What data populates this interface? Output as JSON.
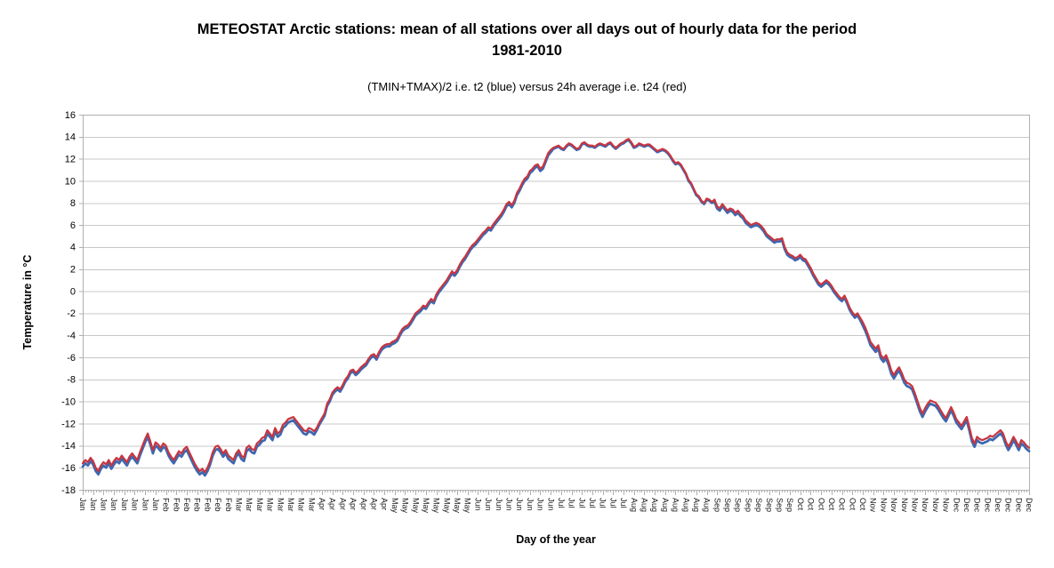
{
  "header": {
    "title_line1": "METEOSTAT Arctic stations: mean of all stations over all days out of hourly data for the period",
    "title_line2": "1981-2010",
    "subtitle": "(TMIN+TMAX)/2 i.e. t2 (blue) versus 24h average i.e. t24 (red)"
  },
  "chart_data": {
    "type": "line",
    "title": "METEOSTAT Arctic stations: mean of all stations over all days out of hourly data for the period 1981-2010",
    "subtitle": "(TMIN+TMAX)/2 i.e. t2 (blue) versus 24h average i.e. t24 (red)",
    "xlabel": "Day of the year",
    "ylabel": "Temperature in °C",
    "ylim": [
      -18,
      16
    ],
    "y_ticks": [
      16,
      14,
      12,
      10,
      8,
      6,
      4,
      2,
      0,
      -2,
      -4,
      -6,
      -8,
      -10,
      -12,
      -14,
      -16,
      -18
    ],
    "grid": "horizontal",
    "legend_position": "none",
    "days_per_year": 365,
    "x_label_step_days": 4,
    "x_tick_labels": [
      "Jan",
      "Jan",
      "Jan",
      "Jan",
      "Jan",
      "Jan",
      "Jan",
      "Jan",
      "Feb",
      "Feb",
      "Feb",
      "Feb",
      "Feb",
      "Feb",
      "Feb",
      "Mar",
      "Mar",
      "Mar",
      "Mar",
      "Mar",
      "Mar",
      "Mar",
      "Mar",
      "Apr",
      "Apr",
      "Apr",
      "Apr",
      "Apr",
      "Apr",
      "Apr",
      "May",
      "May",
      "May",
      "May",
      "May",
      "May",
      "May",
      "May",
      "Jun",
      "Jun",
      "Jun",
      "Jun",
      "Jun",
      "Jun",
      "Jun",
      "Jun",
      "Jul",
      "Jul",
      "Jul",
      "Jul",
      "Jul",
      "Jul",
      "Jul",
      "Aug",
      "Aug",
      "Aug",
      "Aug",
      "Aug",
      "Aug",
      "Aug",
      "Aug",
      "Sep",
      "Sep",
      "Sep",
      "Sep",
      "Sep",
      "Sep",
      "Sep",
      "Sep",
      "Oct",
      "Oct",
      "Oct",
      "Oct",
      "Oct",
      "Oct",
      "Oct",
      "Nov",
      "Nov",
      "Nov",
      "Nov",
      "Nov",
      "Nov",
      "Nov",
      "Nov",
      "Dec",
      "Dec",
      "Dec",
      "Dec",
      "Dec",
      "Dec",
      "Dec",
      "Dec"
    ],
    "colors": {
      "grid": "#c8c8c8",
      "axis": "#b0b0b0",
      "t2_blue": "#3E68B0",
      "t24_red": "#C8353F"
    },
    "series": [
      {
        "name": "t2 = (TMIN+TMAX)/2 (blue)",
        "color": "#3E68B0",
        "width": 2.8,
        "values": [
          -15.9,
          -15.6,
          -15.8,
          -15.4,
          -15.7,
          -16.3,
          -16.6,
          -16.1,
          -15.8,
          -16.0,
          -15.6,
          -16.1,
          -15.7,
          -15.4,
          -15.6,
          -15.2,
          -15.5,
          -15.8,
          -15.3,
          -15.0,
          -15.3,
          -15.6,
          -14.9,
          -14.3,
          -13.7,
          -13.2,
          -13.9,
          -14.7,
          -14.0,
          -14.2,
          -14.5,
          -14.1,
          -14.3,
          -14.9,
          -15.3,
          -15.6,
          -15.2,
          -14.8,
          -15.0,
          -14.6,
          -14.4,
          -14.9,
          -15.4,
          -15.9,
          -16.3,
          -16.6,
          -16.4,
          -16.7,
          -16.3,
          -15.7,
          -14.9,
          -14.4,
          -14.3,
          -14.6,
          -15.0,
          -14.7,
          -15.2,
          -15.4,
          -15.6,
          -15.0,
          -14.7,
          -15.2,
          -15.4,
          -14.5,
          -14.3,
          -14.6,
          -14.7,
          -14.1,
          -13.9,
          -13.6,
          -13.5,
          -12.9,
          -13.2,
          -13.5,
          -12.7,
          -13.2,
          -13.0,
          -12.4,
          -12.2,
          -11.9,
          -11.8,
          -11.7,
          -12.0,
          -12.3,
          -12.6,
          -12.9,
          -13.0,
          -12.7,
          -12.8,
          -13.0,
          -12.6,
          -12.1,
          -11.7,
          -11.3,
          -10.4,
          -10.0,
          -9.4,
          -9.1,
          -8.9,
          -9.1,
          -8.7,
          -8.2,
          -7.9,
          -7.4,
          -7.3,
          -7.6,
          -7.4,
          -7.1,
          -6.9,
          -6.7,
          -6.3,
          -6.0,
          -5.9,
          -6.2,
          -5.7,
          -5.3,
          -5.1,
          -5.0,
          -5.0,
          -4.8,
          -4.7,
          -4.5,
          -4.0,
          -3.6,
          -3.4,
          -3.3,
          -3.0,
          -2.6,
          -2.2,
          -2.0,
          -1.8,
          -1.5,
          -1.6,
          -1.2,
          -0.9,
          -1.1,
          -0.5,
          -0.1,
          0.2,
          0.5,
          0.8,
          1.2,
          1.6,
          1.4,
          1.7,
          2.2,
          2.6,
          2.9,
          3.3,
          3.7,
          4.0,
          4.2,
          4.5,
          4.8,
          5.1,
          5.3,
          5.6,
          5.5,
          5.9,
          6.2,
          6.5,
          6.8,
          7.2,
          7.7,
          7.9,
          7.6,
          8.0,
          8.7,
          9.1,
          9.6,
          10.0,
          10.2,
          10.7,
          10.9,
          11.2,
          11.3,
          10.9,
          11.1,
          11.7,
          12.3,
          12.6,
          12.9,
          13.0,
          13.1,
          12.9,
          12.8,
          13.1,
          13.3,
          13.2,
          13.0,
          12.8,
          12.9,
          13.3,
          13.4,
          13.2,
          13.1,
          13.1,
          13.0,
          13.2,
          13.3,
          13.2,
          13.1,
          13.3,
          13.4,
          13.1,
          12.9,
          13.1,
          13.3,
          13.4,
          13.6,
          13.7,
          13.4,
          13.0,
          13.1,
          13.3,
          13.2,
          13.1,
          13.2,
          13.2,
          13.0,
          12.8,
          12.6,
          12.7,
          12.8,
          12.7,
          12.5,
          12.2,
          11.8,
          11.5,
          11.6,
          11.4,
          11.0,
          10.6,
          10.0,
          9.7,
          9.2,
          8.7,
          8.5,
          8.1,
          7.9,
          8.3,
          8.2,
          8.0,
          8.1,
          7.5,
          7.3,
          7.7,
          7.4,
          7.1,
          7.3,
          7.2,
          6.9,
          7.1,
          6.8,
          6.6,
          6.2,
          6.0,
          5.8,
          5.9,
          6.0,
          5.9,
          5.7,
          5.4,
          5.0,
          4.8,
          4.6,
          4.4,
          4.5,
          4.5,
          4.6,
          3.8,
          3.3,
          3.1,
          3.0,
          2.8,
          2.9,
          3.1,
          2.8,
          2.7,
          2.3,
          1.9,
          1.4,
          1.0,
          0.6,
          0.4,
          0.6,
          0.8,
          0.6,
          0.3,
          -0.1,
          -0.4,
          -0.7,
          -0.9,
          -0.6,
          -1.1,
          -1.7,
          -2.1,
          -2.4,
          -2.2,
          -2.6,
          -3.1,
          -3.6,
          -4.2,
          -4.9,
          -5.2,
          -5.5,
          -5.2,
          -6.1,
          -6.4,
          -6.1,
          -6.7,
          -7.5,
          -7.9,
          -7.5,
          -7.2,
          -7.7,
          -8.3,
          -8.6,
          -8.7,
          -8.9,
          -9.5,
          -10.2,
          -10.9,
          -11.4,
          -10.9,
          -10.5,
          -10.2,
          -10.3,
          -10.4,
          -10.7,
          -11.1,
          -11.5,
          -11.8,
          -11.3,
          -10.8,
          -11.3,
          -11.9,
          -12.2,
          -12.5,
          -12.1,
          -11.7,
          -12.6,
          -13.6,
          -14.1,
          -13.5,
          -13.7,
          -13.8,
          -13.7,
          -13.6,
          -13.4,
          -13.5,
          -13.3,
          -13.1,
          -12.9,
          -13.2,
          -13.9,
          -14.4,
          -14.0,
          -13.5,
          -13.9,
          -14.4,
          -13.8,
          -14.0,
          -14.3,
          -14.5
        ]
      },
      {
        "name": "t24 = 24h average (red)",
        "color": "#C8353F",
        "width": 2.2,
        "values": [
          -15.6,
          -15.3,
          -15.5,
          -15.1,
          -15.4,
          -16.0,
          -16.3,
          -15.8,
          -15.5,
          -15.7,
          -15.3,
          -15.8,
          -15.4,
          -15.1,
          -15.3,
          -14.9,
          -15.2,
          -15.5,
          -15.0,
          -14.7,
          -15.0,
          -15.3,
          -14.6,
          -14.0,
          -13.4,
          -12.9,
          -13.6,
          -14.4,
          -13.7,
          -13.9,
          -14.2,
          -13.8,
          -14.0,
          -14.6,
          -15.0,
          -15.3,
          -14.9,
          -14.5,
          -14.7,
          -14.3,
          -14.1,
          -14.6,
          -15.1,
          -15.6,
          -16.0,
          -16.3,
          -16.1,
          -16.4,
          -16.0,
          -15.4,
          -14.6,
          -14.1,
          -14.0,
          -14.3,
          -14.7,
          -14.4,
          -14.9,
          -15.1,
          -15.3,
          -14.7,
          -14.4,
          -14.9,
          -15.1,
          -14.2,
          -14.0,
          -14.3,
          -14.4,
          -13.8,
          -13.6,
          -13.3,
          -13.2,
          -12.6,
          -12.9,
          -13.2,
          -12.4,
          -12.9,
          -12.7,
          -12.1,
          -11.9,
          -11.6,
          -11.5,
          -11.4,
          -11.7,
          -12.0,
          -12.3,
          -12.6,
          -12.7,
          -12.4,
          -12.5,
          -12.7,
          -12.4,
          -11.9,
          -11.5,
          -11.1,
          -10.2,
          -9.8,
          -9.2,
          -8.9,
          -8.7,
          -8.9,
          -8.5,
          -8.0,
          -7.7,
          -7.2,
          -7.1,
          -7.4,
          -7.2,
          -6.9,
          -6.7,
          -6.5,
          -6.1,
          -5.8,
          -5.7,
          -6.0,
          -5.5,
          -5.1,
          -4.9,
          -4.8,
          -4.8,
          -4.6,
          -4.5,
          -4.3,
          -3.8,
          -3.4,
          -3.2,
          -3.1,
          -2.8,
          -2.4,
          -2.0,
          -1.8,
          -1.6,
          -1.3,
          -1.4,
          -1.0,
          -0.7,
          -0.9,
          -0.3,
          0.1,
          0.4,
          0.7,
          1.0,
          1.4,
          1.8,
          1.6,
          1.9,
          2.4,
          2.8,
          3.1,
          3.5,
          3.9,
          4.2,
          4.4,
          4.7,
          5.0,
          5.3,
          5.5,
          5.8,
          5.7,
          6.1,
          6.4,
          6.7,
          7.0,
          7.4,
          7.9,
          8.1,
          7.8,
          8.2,
          8.9,
          9.3,
          9.8,
          10.2,
          10.4,
          10.9,
          11.1,
          11.4,
          11.5,
          11.1,
          11.3,
          11.9,
          12.5,
          12.8,
          13.0,
          13.1,
          13.2,
          13.0,
          12.9,
          13.2,
          13.4,
          13.3,
          13.1,
          12.9,
          13.0,
          13.4,
          13.5,
          13.3,
          13.2,
          13.2,
          13.1,
          13.3,
          13.4,
          13.3,
          13.2,
          13.4,
          13.5,
          13.2,
          13.0,
          13.2,
          13.4,
          13.5,
          13.7,
          13.8,
          13.5,
          13.1,
          13.2,
          13.4,
          13.3,
          13.2,
          13.3,
          13.3,
          13.1,
          12.9,
          12.7,
          12.8,
          12.9,
          12.8,
          12.6,
          12.3,
          11.9,
          11.6,
          11.7,
          11.5,
          11.1,
          10.7,
          10.1,
          9.8,
          9.3,
          8.8,
          8.6,
          8.2,
          8.0,
          8.4,
          8.3,
          8.1,
          8.3,
          7.7,
          7.5,
          7.9,
          7.6,
          7.3,
          7.5,
          7.4,
          7.1,
          7.3,
          7.0,
          6.8,
          6.4,
          6.2,
          6.0,
          6.1,
          6.2,
          6.1,
          5.9,
          5.6,
          5.2,
          5.0,
          4.8,
          4.6,
          4.7,
          4.7,
          4.8,
          4.0,
          3.5,
          3.3,
          3.2,
          3.0,
          3.1,
          3.3,
          3.0,
          2.9,
          2.5,
          2.1,
          1.6,
          1.2,
          0.8,
          0.6,
          0.8,
          1.0,
          0.8,
          0.5,
          0.1,
          -0.2,
          -0.5,
          -0.7,
          -0.4,
          -0.9,
          -1.5,
          -1.9,
          -2.2,
          -2.0,
          -2.4,
          -2.8,
          -3.3,
          -3.9,
          -4.6,
          -4.9,
          -5.2,
          -4.9,
          -5.8,
          -6.1,
          -5.8,
          -6.4,
          -7.2,
          -7.6,
          -7.2,
          -6.9,
          -7.4,
          -8.0,
          -8.3,
          -8.4,
          -8.6,
          -9.2,
          -9.9,
          -10.6,
          -11.1,
          -10.6,
          -10.2,
          -9.9,
          -10.0,
          -10.1,
          -10.4,
          -10.8,
          -11.2,
          -11.5,
          -11.0,
          -10.5,
          -11.0,
          -11.6,
          -11.9,
          -12.2,
          -11.8,
          -11.4,
          -12.3,
          -13.3,
          -13.8,
          -13.2,
          -13.4,
          -13.5,
          -13.4,
          -13.3,
          -13.1,
          -13.2,
          -13.0,
          -12.8,
          -12.6,
          -12.9,
          -13.6,
          -14.1,
          -13.7,
          -13.2,
          -13.6,
          -14.1,
          -13.5,
          -13.7,
          -14.0,
          -14.2
        ]
      }
    ]
  }
}
